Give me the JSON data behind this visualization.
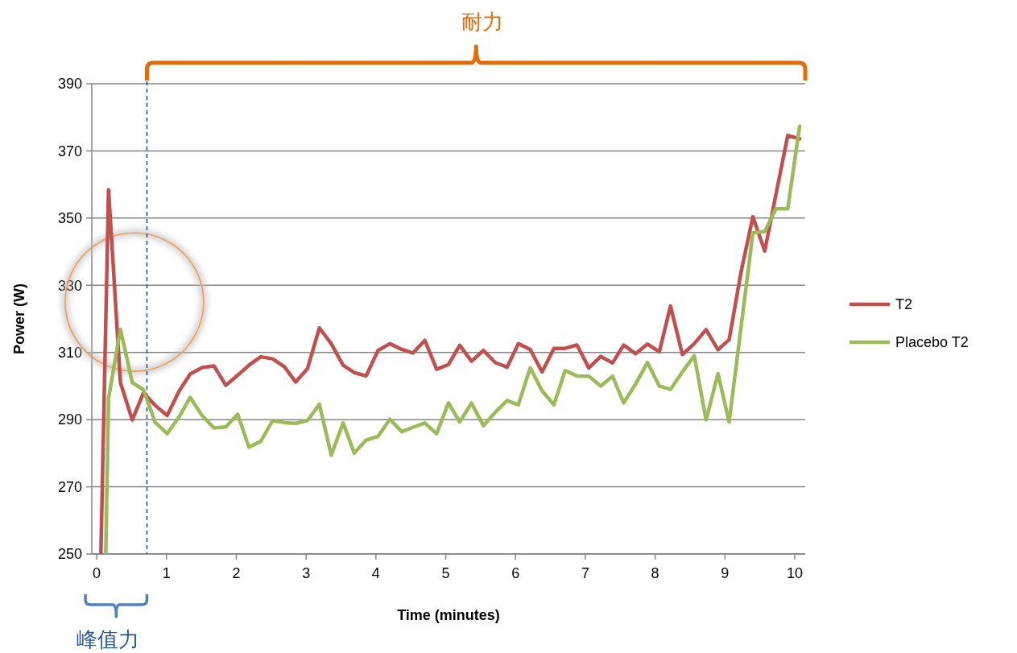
{
  "chart_data": {
    "type": "line",
    "xlabel": "Time (minutes)",
    "ylabel": "Power (W)",
    "xlim": [
      -0.07,
      10.15
    ],
    "xticks": [
      0,
      1,
      2,
      3,
      4,
      5,
      6,
      7,
      8,
      9,
      10
    ],
    "ylim": [
      250,
      390
    ],
    "yticks": [
      250,
      270,
      290,
      310,
      330,
      350,
      370,
      390
    ],
    "grid": "y",
    "legend": "right",
    "marker": "none",
    "line_style": "solid",
    "annotations": [
      "耐力",
      "峰值力"
    ],
    "ref_lines": [
      {
        "axis": "x",
        "value": 0.72,
        "color": "#1f497d",
        "line_style": "dashed"
      }
    ],
    "series": [
      {
        "name": "T2",
        "color": "#c0504d",
        "x": [
          0.06,
          0.17,
          0.34,
          0.51,
          0.67,
          0.84,
          1.01,
          1.18,
          1.34,
          1.51,
          1.68,
          1.85,
          2.02,
          2.18,
          2.35,
          2.52,
          2.69,
          2.85,
          3.02,
          3.19,
          3.36,
          3.53,
          3.69,
          3.86,
          4.03,
          4.2,
          4.37,
          4.53,
          4.7,
          4.87,
          5.04,
          5.2,
          5.37,
          5.54,
          5.71,
          5.88,
          6.04,
          6.21,
          6.38,
          6.55,
          6.71,
          6.88,
          7.05,
          7.22,
          7.39,
          7.55,
          7.72,
          7.89,
          8.06,
          8.22,
          8.39,
          8.56,
          8.73,
          8.9,
          9.06,
          9.23,
          9.4,
          9.57,
          9.73,
          9.9,
          10.07
        ],
        "values": [
          250,
          358.4,
          301,
          289.9,
          298,
          294.2,
          291.2,
          298.5,
          303.6,
          305.5,
          306,
          300.2,
          303.2,
          306.2,
          308.7,
          308.1,
          305.7,
          301.2,
          305.2,
          317.3,
          312.6,
          306.2,
          304,
          303,
          310.6,
          312.6,
          310.9,
          309.8,
          313.6,
          305,
          306.4,
          312.1,
          307.4,
          310.6,
          307,
          305.6,
          312.6,
          310.9,
          304.2,
          311.2,
          311.2,
          312.2,
          305.4,
          308.8,
          306.9,
          312.2,
          309.6,
          312.5,
          310.2,
          323.8,
          309.4,
          312.6,
          316.8,
          310.8,
          313.8,
          333.9,
          350.4,
          340.2,
          357,
          374.6,
          373.6
        ]
      },
      {
        "name": "Placebo T2",
        "color": "#9bbb59",
        "x": [
          0.13,
          0.17,
          0.34,
          0.51,
          0.67,
          0.84,
          1.01,
          1.18,
          1.34,
          1.51,
          1.68,
          1.85,
          2.02,
          2.18,
          2.35,
          2.52,
          2.69,
          2.85,
          3.02,
          3.19,
          3.36,
          3.53,
          3.69,
          3.86,
          4.03,
          4.2,
          4.37,
          4.53,
          4.7,
          4.87,
          5.04,
          5.2,
          5.37,
          5.54,
          5.71,
          5.88,
          6.04,
          6.21,
          6.38,
          6.55,
          6.71,
          6.88,
          7.05,
          7.22,
          7.39,
          7.55,
          7.72,
          7.89,
          8.06,
          8.22,
          8.39,
          8.56,
          8.73,
          8.9,
          9.06,
          9.23,
          9.4,
          9.57,
          9.73,
          9.9,
          10.07
        ],
        "values": [
          250,
          296.3,
          316.9,
          301,
          298.9,
          289.1,
          285.8,
          290.8,
          296.6,
          291.2,
          287.5,
          287.8,
          291.6,
          281.8,
          283.5,
          289.7,
          289.1,
          288.9,
          289.7,
          294.6,
          279.4,
          289,
          280,
          283.9,
          285,
          290.1,
          286.4,
          287.7,
          289,
          285.8,
          295,
          289.3,
          294.9,
          288.2,
          292.2,
          295.7,
          294.4,
          305.4,
          298.6,
          294.4,
          304.6,
          303,
          302.9,
          300,
          302.9,
          295,
          300.6,
          307,
          300,
          299,
          304.2,
          309,
          289.9,
          303.7,
          289.3,
          317.4,
          345.6,
          346,
          352.8,
          352.8,
          377.4
        ]
      }
    ]
  }
}
